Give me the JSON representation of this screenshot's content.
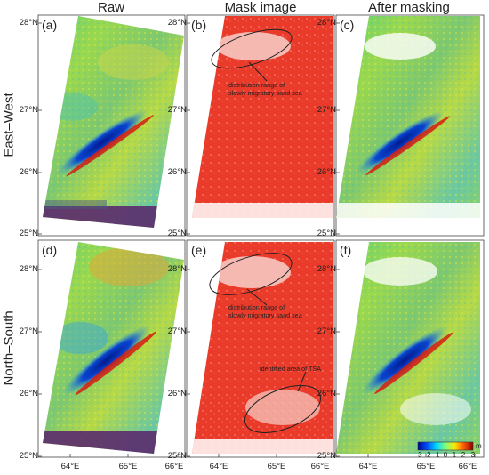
{
  "column_titles": [
    "Raw",
    "Mask image",
    "After masking"
  ],
  "row_titles": [
    "East–West",
    "North–South"
  ],
  "panel_labels": [
    "(a)",
    "(b)",
    "(c)",
    "(d)",
    "(e)",
    "(f)"
  ],
  "lat_labels": [
    "28°N",
    "27°N",
    "26°N",
    "25°N"
  ],
  "lon_labels": [
    "64°E",
    "65°E",
    "66°E"
  ],
  "annotations": {
    "b_sand_sea": "distribution range of\nslowly migratory sand sea",
    "e_sand_sea": "distribution range of\nslowly migratory sand sea",
    "e_tsa": "identified area of TSA"
  },
  "colorbar": {
    "ticks": [
      "−3",
      "−2",
      "−1",
      "0",
      "1",
      "2",
      "3"
    ],
    "unit": "m",
    "colors": [
      "#00008f",
      "#0050ff",
      "#00d4ff",
      "#7dff80",
      "#ffe600",
      "#ff5a00",
      "#8c0000"
    ]
  },
  "colors": {
    "mask_red": "#ea3a2a",
    "field_green": "#7ec86e",
    "deformation_blue": "#0a2fa8",
    "deformation_red": "#d61c10",
    "sea_purple": "#5a2a6e"
  }
}
